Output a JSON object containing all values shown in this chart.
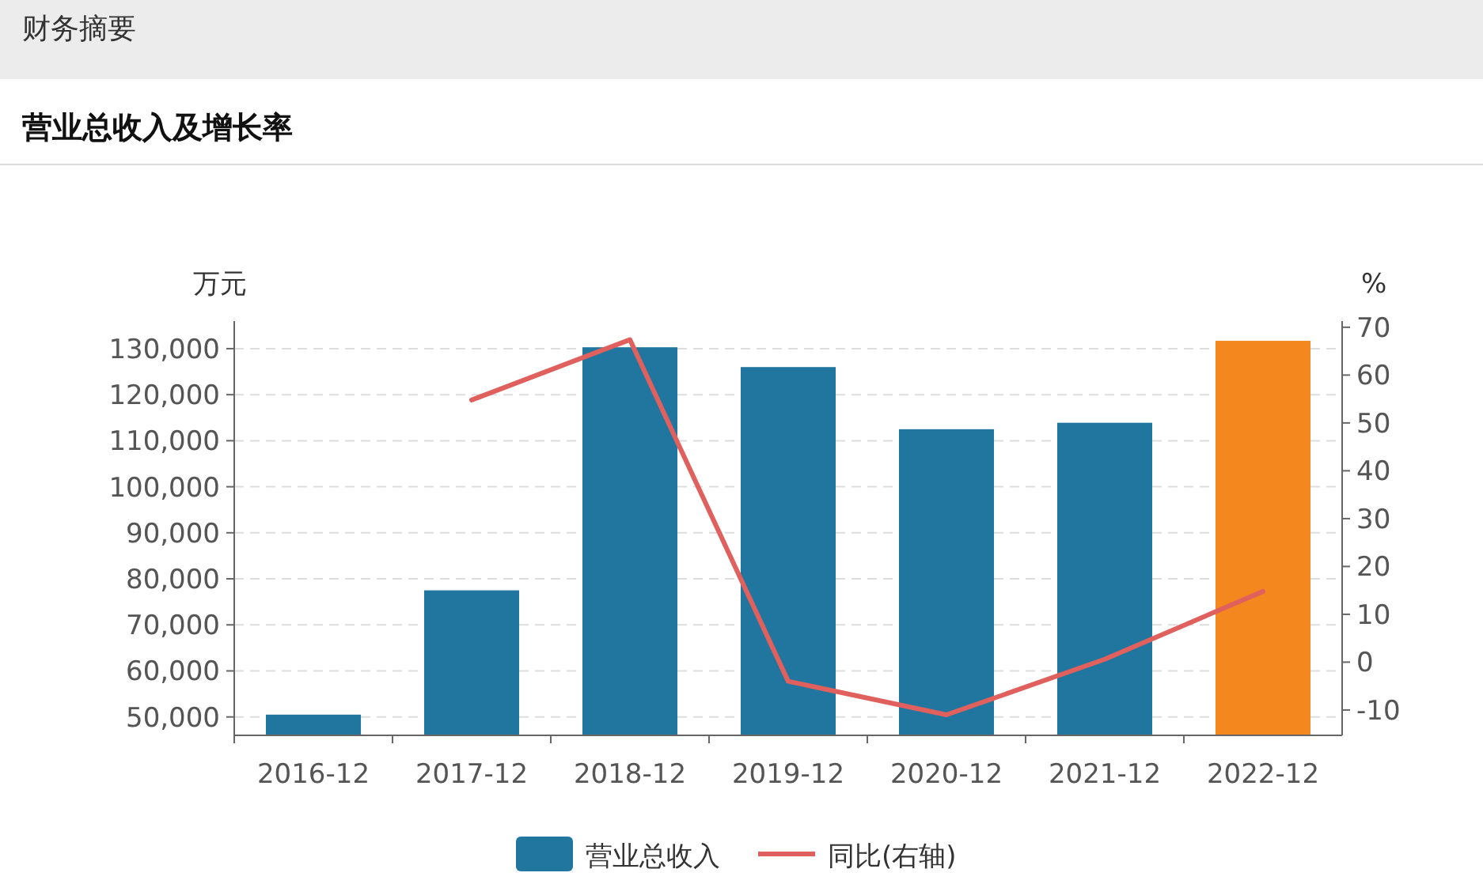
{
  "chart_data": {
    "type": "bar",
    "title": "营业总收入及增长率",
    "annotations": [
      "财务摘要"
    ],
    "ylabel": "万元",
    "y2label": "%",
    "categories": [
      "2016-12",
      "2017-12",
      "2018-12",
      "2019-12",
      "2020-12",
      "2021-12",
      "2022-12"
    ],
    "series": [
      {
        "name": "营业总收入",
        "color": "#21769f",
        "colors": [
          "#21769f",
          "#21769f",
          "#21769f",
          "#21769f",
          "#21769f",
          "#21769f",
          "#f5871f"
        ],
        "values": [
          50500,
          77500,
          130300,
          126000,
          112500,
          113900,
          131700
        ]
      },
      {
        "name": "同比(右轴)",
        "type": "line",
        "axis": "y2",
        "color": "#e0605d",
        "values": [
          null,
          54.8,
          67.4,
          -4.0,
          -11.0,
          0.6,
          14.8
        ]
      }
    ],
    "ylim": [
      46000,
      136000
    ],
    "yticks": [
      {
        "value": 50000,
        "label": "50,000"
      },
      {
        "value": 60000,
        "label": "60,000"
      },
      {
        "value": 70000,
        "label": "70,000"
      },
      {
        "value": 80000,
        "label": "80,000"
      },
      {
        "value": 90000,
        "label": "90,000"
      },
      {
        "value": 100000,
        "label": "100,000"
      },
      {
        "value": 110000,
        "label": "110,000"
      },
      {
        "value": 120000,
        "label": "120,000"
      },
      {
        "value": 130000,
        "label": "130,000"
      }
    ],
    "y2lim": [
      -15.3,
      71.3
    ],
    "y2ticks": [
      -10,
      0,
      10,
      20,
      30,
      40,
      50,
      60,
      70
    ],
    "grid": "y",
    "legend": "bottom"
  }
}
